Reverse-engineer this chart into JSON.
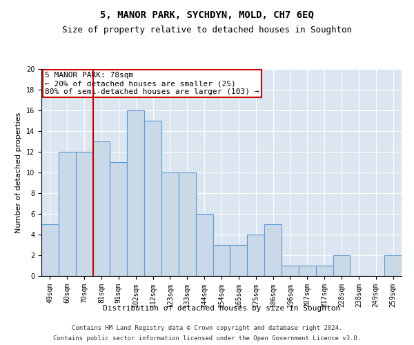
{
  "title": "5, MANOR PARK, SYCHDYN, MOLD, CH7 6EQ",
  "subtitle": "Size of property relative to detached houses in Soughton",
  "xlabel": "Distribution of detached houses by size in Soughton",
  "ylabel": "Number of detached properties",
  "categories": [
    "49sqm",
    "60sqm",
    "70sqm",
    "81sqm",
    "91sqm",
    "102sqm",
    "112sqm",
    "123sqm",
    "133sqm",
    "144sqm",
    "154sqm",
    "165sqm",
    "175sqm",
    "186sqm",
    "196sqm",
    "207sqm",
    "217sqm",
    "228sqm",
    "238sqm",
    "249sqm",
    "259sqm"
  ],
  "values": [
    5,
    12,
    12,
    13,
    11,
    16,
    15,
    10,
    10,
    6,
    3,
    3,
    4,
    5,
    1,
    1,
    1,
    2,
    0,
    0,
    2
  ],
  "bar_color": "#c9d9e8",
  "bar_edge_color": "#5b9bd5",
  "vline_color": "#cc0000",
  "vline_x": 2.5,
  "annotation_text": "5 MANOR PARK: 78sqm\n← 20% of detached houses are smaller (25)\n80% of semi-detached houses are larger (103) →",
  "annotation_box_color": "#ffffff",
  "annotation_box_edge": "#cc0000",
  "ylim": [
    0,
    20
  ],
  "yticks": [
    0,
    2,
    4,
    6,
    8,
    10,
    12,
    14,
    16,
    18,
    20
  ],
  "footer_line1": "Contains HM Land Registry data © Crown copyright and database right 2024.",
  "footer_line2": "Contains public sector information licensed under the Open Government Licence v3.0.",
  "plot_background_color": "#dce6f1",
  "title_fontsize": 10,
  "subtitle_fontsize": 9,
  "axis_label_fontsize": 8,
  "tick_fontsize": 7,
  "footer_fontsize": 6.5,
  "annotation_fontsize": 8
}
